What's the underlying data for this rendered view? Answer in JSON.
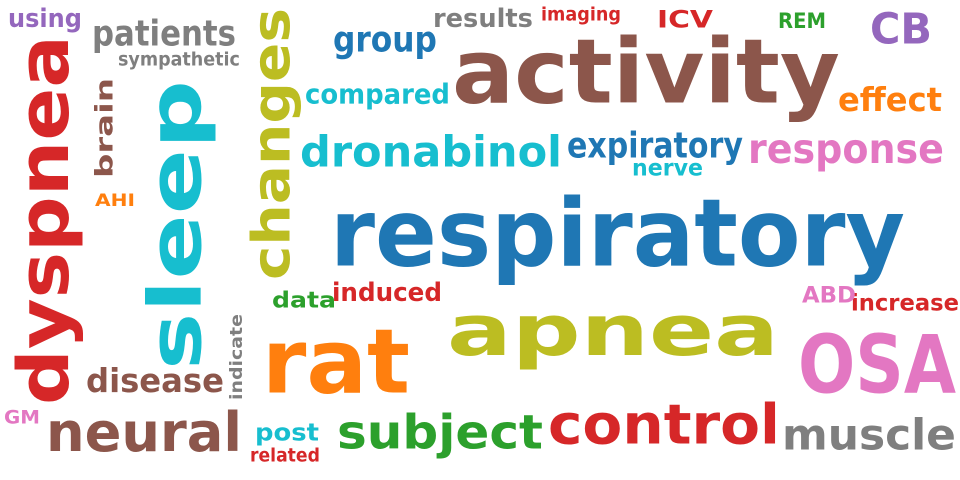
{
  "words": [
    {
      "id": "word-respiratory",
      "text": "respiratory",
      "color": "#1f77b4",
      "orientation": "horizontal"
    },
    {
      "id": "word-activity",
      "text": "activity",
      "color": "#8c564b",
      "orientation": "horizontal"
    },
    {
      "id": "word-apnea",
      "text": "apnea",
      "color": "#bcbd22",
      "orientation": "horizontal"
    },
    {
      "id": "word-sleep",
      "text": "sleep",
      "color": "#17becf",
      "orientation": "vertical"
    },
    {
      "id": "word-dyspnea",
      "text": "dyspnea",
      "color": "#d62728",
      "orientation": "vertical"
    },
    {
      "id": "word-rat",
      "text": "rat",
      "color": "#ff7f0e",
      "orientation": "horizontal"
    },
    {
      "id": "word-osa",
      "text": "OSA",
      "color": "#e377c2",
      "orientation": "horizontal"
    },
    {
      "id": "word-changes",
      "text": "changes",
      "color": "#bcbd22",
      "orientation": "vertical"
    },
    {
      "id": "word-control",
      "text": "control",
      "color": "#d62728",
      "orientation": "horizontal"
    },
    {
      "id": "word-neural",
      "text": "neural",
      "color": "#8c564b",
      "orientation": "horizontal"
    },
    {
      "id": "word-subject",
      "text": "subject",
      "color": "#2ca02c",
      "orientation": "horizontal"
    },
    {
      "id": "word-dronabinol",
      "text": "dronabinol",
      "color": "#17becf",
      "orientation": "horizontal"
    },
    {
      "id": "word-muscle",
      "text": "muscle",
      "color": "#7f7f7f",
      "orientation": "horizontal"
    },
    {
      "id": "word-response",
      "text": "response",
      "color": "#e377c2",
      "orientation": "horizontal"
    },
    {
      "id": "word-expiratory",
      "text": "expiratory",
      "color": "#1f77b4",
      "orientation": "horizontal"
    },
    {
      "id": "word-cb",
      "text": "CB",
      "color": "#9467bd",
      "orientation": "horizontal"
    },
    {
      "id": "word-patients",
      "text": "patients",
      "color": "#7f7f7f",
      "orientation": "horizontal"
    },
    {
      "id": "word-disease",
      "text": "disease",
      "color": "#8c564b",
      "orientation": "horizontal"
    },
    {
      "id": "word-group",
      "text": "group",
      "color": "#1f77b4",
      "orientation": "horizontal"
    },
    {
      "id": "word-effect",
      "text": "effect",
      "color": "#ff7f0e",
      "orientation": "horizontal"
    },
    {
      "id": "word-brain",
      "text": "brain",
      "color": "#8c564b",
      "orientation": "vertical"
    },
    {
      "id": "word-compared",
      "text": "compared",
      "color": "#17becf",
      "orientation": "horizontal"
    },
    {
      "id": "word-induced",
      "text": "induced",
      "color": "#d62728",
      "orientation": "horizontal"
    },
    {
      "id": "word-results",
      "text": "results",
      "color": "#7f7f7f",
      "orientation": "horizontal"
    },
    {
      "id": "word-using",
      "text": "using",
      "color": "#9467bd",
      "orientation": "horizontal"
    },
    {
      "id": "word-post",
      "text": "post",
      "color": "#17becf",
      "orientation": "horizontal"
    },
    {
      "id": "word-increase",
      "text": "increase",
      "color": "#d62728",
      "orientation": "horizontal"
    },
    {
      "id": "word-icv",
      "text": "ICV",
      "color": "#d62728",
      "orientation": "horizontal"
    },
    {
      "id": "word-data",
      "text": "data",
      "color": "#2ca02c",
      "orientation": "horizontal"
    },
    {
      "id": "word-nerve",
      "text": "nerve",
      "color": "#17becf",
      "orientation": "horizontal"
    },
    {
      "id": "word-abd",
      "text": "ABD",
      "color": "#e377c2",
      "orientation": "horizontal"
    },
    {
      "id": "word-sympathetic",
      "text": "sympathetic",
      "color": "#7f7f7f",
      "orientation": "horizontal"
    },
    {
      "id": "word-imaging",
      "text": "imaging",
      "color": "#d62728",
      "orientation": "horizontal"
    },
    {
      "id": "word-rem",
      "text": "REM",
      "color": "#2ca02c",
      "orientation": "horizontal"
    },
    {
      "id": "word-ahi",
      "text": "AHI",
      "color": "#ff7f0e",
      "orientation": "horizontal"
    },
    {
      "id": "word-related",
      "text": "related",
      "color": "#d62728",
      "orientation": "horizontal"
    },
    {
      "id": "word-indicate",
      "text": "indicate",
      "color": "#7f7f7f",
      "orientation": "vertical"
    },
    {
      "id": "word-gm",
      "text": "GM",
      "color": "#e377c2",
      "orientation": "horizontal"
    }
  ]
}
